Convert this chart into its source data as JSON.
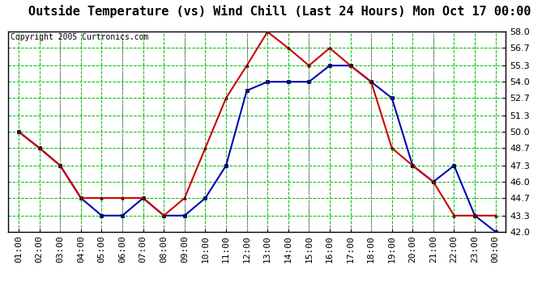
{
  "title": "Outside Temperature (vs) Wind Chill (Last 24 Hours) Mon Oct 17 00:00",
  "copyright": "Copyright 2005 Curtronics.com",
  "x_labels": [
    "01:00",
    "02:00",
    "03:00",
    "04:00",
    "05:00",
    "06:00",
    "07:00",
    "08:00",
    "09:00",
    "10:00",
    "11:00",
    "12:00",
    "13:00",
    "14:00",
    "15:00",
    "16:00",
    "17:00",
    "18:00",
    "19:00",
    "20:00",
    "21:00",
    "22:00",
    "23:00",
    "00:00"
  ],
  "y_ticks": [
    42.0,
    43.3,
    44.7,
    46.0,
    47.3,
    48.7,
    50.0,
    51.3,
    52.7,
    54.0,
    55.3,
    56.7,
    58.0
  ],
  "y_min": 42.0,
  "y_max": 58.0,
  "blue_data": [
    50.0,
    48.7,
    47.3,
    44.7,
    43.3,
    43.3,
    44.7,
    43.3,
    43.3,
    44.7,
    47.3,
    53.3,
    54.0,
    54.0,
    54.0,
    55.3,
    55.3,
    54.0,
    52.7,
    47.3,
    46.0,
    47.3,
    43.3,
    42.0
  ],
  "red_data": [
    50.0,
    48.7,
    47.3,
    44.7,
    44.7,
    44.7,
    44.7,
    43.3,
    44.7,
    48.7,
    52.7,
    55.3,
    58.0,
    56.7,
    55.3,
    56.7,
    55.3,
    54.0,
    48.7,
    47.3,
    46.0,
    43.3,
    43.3,
    43.3
  ],
  "blue_color": "#0000bb",
  "red_color": "#cc0000",
  "bg_color": "#ffffff",
  "plot_bg_color": "#ffffff",
  "grid_color": "#00bb00",
  "title_fontsize": 11,
  "tick_fontsize": 8,
  "copyright_fontsize": 7
}
